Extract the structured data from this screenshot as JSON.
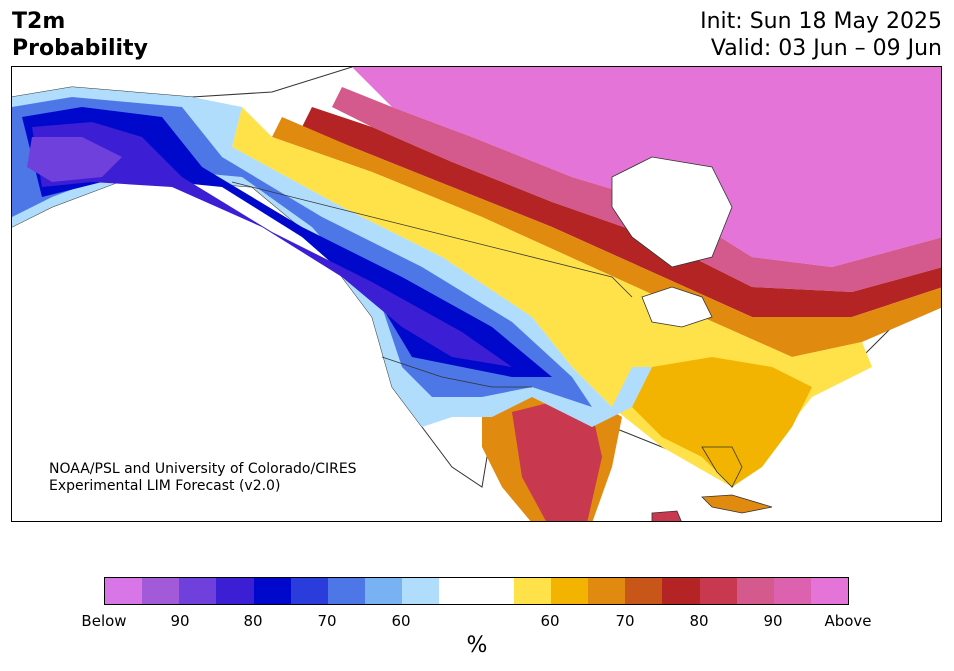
{
  "header": {
    "variable": "T2m",
    "product": "Probability",
    "init": "Init: Sun 18 May 2025",
    "valid": "Valid: 03 Jun – 09 Jun"
  },
  "credit": {
    "line1": "NOAA/PSL and University of Colorado/CIRES",
    "line2": "Experimental LIM Forecast (v2.0)"
  },
  "colorbar": {
    "colors": [
      "#d876e8",
      "#a25ad8",
      "#7040dc",
      "#3c1ed4",
      "#0008cc",
      "#2a3ddc",
      "#4d77e6",
      "#78b2f2",
      "#b0ddfc",
      "#ffffff",
      "#ffffff",
      "#ffe14a",
      "#f2b400",
      "#e08a10",
      "#c85618",
      "#b42424",
      "#c8384e",
      "#d45a8e",
      "#dc62b0",
      "#e474d8"
    ],
    "tick_labels": [
      "Below",
      "90",
      "80",
      "70",
      "60",
      "60",
      "70",
      "80",
      "90",
      "Above"
    ],
    "unit": "%"
  },
  "map": {
    "land_color": "#ffffff",
    "border_color": "#333333"
  }
}
